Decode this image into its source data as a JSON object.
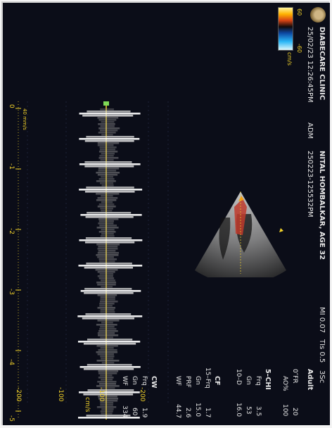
{
  "header": {
    "clinic": "DIABECARE CLINIC",
    "patient": "NITAL HOMBALKAR, AGE 32",
    "datetime": "25/02/23 12:26:45PM",
    "id_label": "ADM",
    "id_value": "250223-125532PM",
    "mi": "MI 0.07",
    "tis": "TIs 0.5",
    "tis_unit": "3Sc",
    "preset": "Adult"
  },
  "colorbar": {
    "top": "60",
    "bottom": "-60",
    "unit": "cm/s"
  },
  "params": {
    "fr_label": "0″FR",
    "fr_value": "20",
    "ao_label": "AO%",
    "ao_value": "100",
    "section1": "5–CHI",
    "frq_label": "Frq",
    "frq_value": "3.5",
    "gn_label": "Gn",
    "gn_value": "53",
    "d_label": "10–D",
    "d_value": "16.0",
    "section2": "CF",
    "cf_frq_label": "15–Frq",
    "cf_frq_value": "1.7",
    "cf_gn_label": "Gn",
    "cf_gn_value": "15.0",
    "prf_label": "PRF",
    "prf_value": "2.6",
    "wf_label": "WF",
    "wf_value": "44.7",
    "section3": "CW",
    "cw_frq_label": "Frq",
    "cw_frq_value": "1.9",
    "cw_gn_label": "Gn",
    "cw_gn_value": "60",
    "cw_wf_label": "WF",
    "cw_wf_value": "334"
  },
  "spectrum": {
    "unit": "cm/s",
    "velocity_ticks": [
      "-200",
      "-100",
      "-100",
      "-200"
    ],
    "time_ticks": [
      "-5",
      "-4",
      "-3",
      "-2",
      "-1",
      "0"
    ],
    "time_unit": "40 mm/s"
  }
}
